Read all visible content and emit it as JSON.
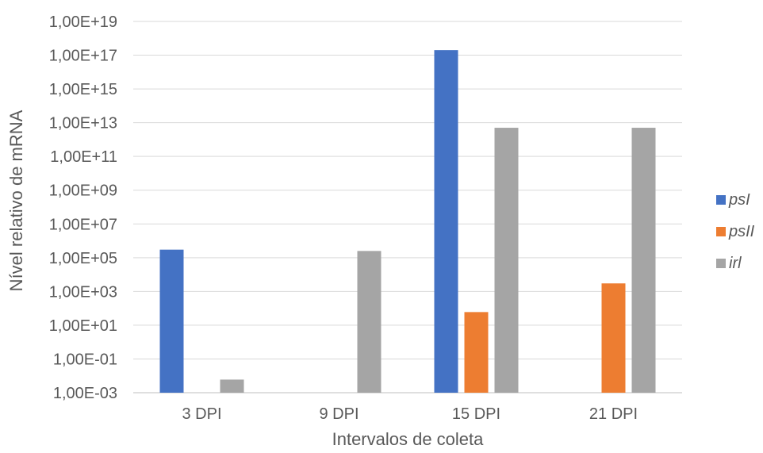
{
  "chart_data": {
    "type": "bar",
    "title": "",
    "xlabel": "Intervalos de coleta",
    "ylabel": "Nível relativo de mRNA",
    "yscale": "log",
    "ylim": [
      0.001,
      1e+19
    ],
    "grid": true,
    "legend_position": "right",
    "categories": [
      "3 DPI",
      "9 DPI",
      "15 DPI",
      "21 DPI"
    ],
    "y_tick_labels": [
      "1,00E-03",
      "1,00E-01",
      "1,00E+01",
      "1,00E+03",
      "1,00E+05",
      "1,00E+07",
      "1,00E+09",
      "1,00E+11",
      "1,00E+13",
      "1,00E+15",
      "1,00E+17",
      "1,00E+19"
    ],
    "series": [
      {
        "name": "psI",
        "color": "#4472c4",
        "values": [
          300000,
          null,
          2e+17,
          null
        ]
      },
      {
        "name": "psII",
        "color": "#ed7d31",
        "values": [
          null,
          null,
          60,
          3000
        ]
      },
      {
        "name": "irl",
        "color": "#a5a5a5",
        "values": [
          0.006,
          250000,
          5000000000000.0,
          5000000000000.0
        ]
      }
    ]
  }
}
